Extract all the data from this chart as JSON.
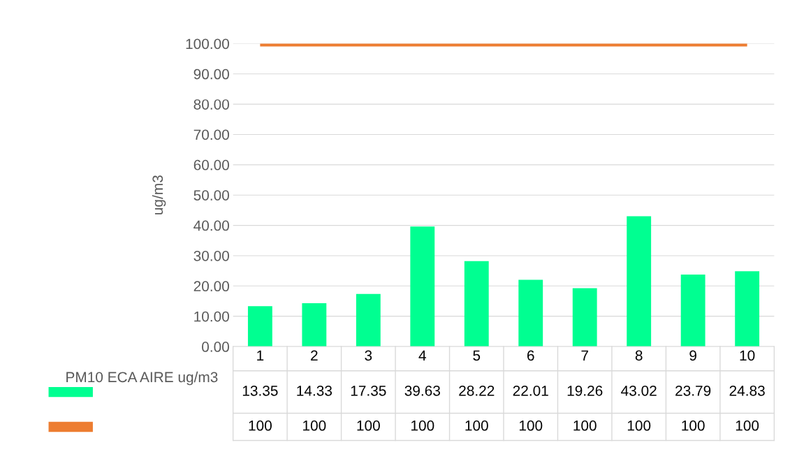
{
  "chart_data": {
    "type": "bar",
    "ylabel": "ug/m3",
    "categories": [
      "1",
      "2",
      "3",
      "4",
      "5",
      "6",
      "7",
      "8",
      "9",
      "10"
    ],
    "series": [
      {
        "name": "PM10 ECA AIRE ug/m3",
        "color": "#00ff91",
        "values": [
          13.35,
          14.33,
          17.35,
          39.63,
          28.22,
          22.01,
          19.26,
          43.02,
          23.79,
          24.83
        ],
        "value_labels": [
          "13.35",
          "14.33",
          "17.35",
          "39.63",
          "28.22",
          "22.01",
          "19.26",
          "43.02",
          "23.79",
          "24.83"
        ]
      },
      {
        "type": "line",
        "color": "#ed7d31",
        "values": [
          100,
          100,
          100,
          100,
          100,
          100,
          100,
          100,
          100,
          100
        ],
        "value_labels": [
          "100",
          "100",
          "100",
          "100",
          "100",
          "100",
          "100",
          "100",
          "100",
          "100"
        ]
      }
    ],
    "ylim": [
      0,
      100
    ],
    "yticks": [
      {
        "value": 0,
        "label": "0.00"
      },
      {
        "value": 10,
        "label": "10.00"
      },
      {
        "value": 20,
        "label": "20.00"
      },
      {
        "value": 30,
        "label": "30.00"
      },
      {
        "value": 40,
        "label": "40.00"
      },
      {
        "value": 50,
        "label": "50.00"
      },
      {
        "value": 60,
        "label": "60.00"
      },
      {
        "value": 70,
        "label": "70.00"
      },
      {
        "value": 80,
        "label": "80.00"
      },
      {
        "value": 90,
        "label": "90.00"
      },
      {
        "value": 100,
        "label": "100.00"
      }
    ],
    "grid": "y",
    "legend": "bottom left"
  }
}
